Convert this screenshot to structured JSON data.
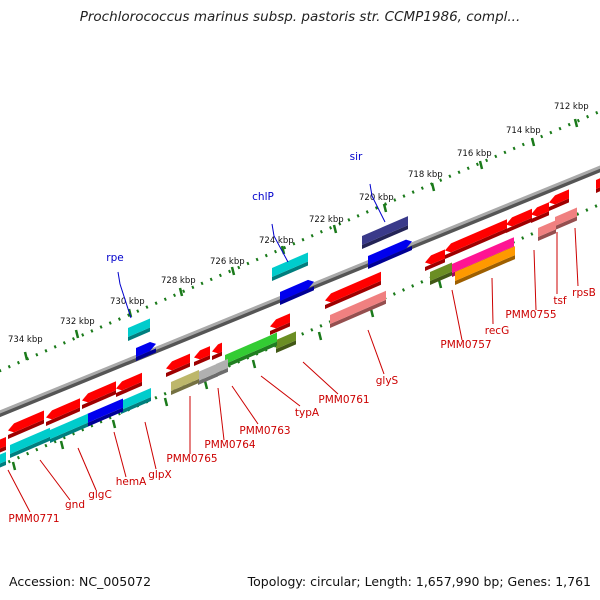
{
  "title": "Prochlorococcus marinus subsp. pastoris str. CCMP1986, compl...",
  "footer": {
    "accession": "Accession: NC_005072",
    "info": "Topology: circular; Length: 1,657,990 bp; Genes: 1,761"
  },
  "ticks": [
    {
      "label": "712 kbp"
    },
    {
      "label": "714 kbp"
    },
    {
      "label": "716 kbp"
    },
    {
      "label": "718 kbp"
    },
    {
      "label": "720 kbp"
    },
    {
      "label": "722 kbp"
    },
    {
      "label": "724 kbp"
    },
    {
      "label": "726 kbp"
    },
    {
      "label": "728 kbp"
    },
    {
      "label": "730 kbp"
    },
    {
      "label": "732 kbp"
    },
    {
      "label": "734 kbp"
    }
  ],
  "upper_labels": [
    {
      "label": "sir",
      "color": "#0000cc"
    },
    {
      "label": "chlP",
      "color": "#0000cc"
    },
    {
      "label": "rpe",
      "color": "#0000cc"
    }
  ],
  "lower_labels": [
    {
      "label": "rpsB",
      "color": "#cc0000"
    },
    {
      "label": "tsf",
      "color": "#cc0000"
    },
    {
      "label": "PMM0755",
      "color": "#cc0000"
    },
    {
      "label": "recG",
      "color": "#cc0000"
    },
    {
      "label": "PMM0757",
      "color": "#cc0000"
    },
    {
      "label": "glyS",
      "color": "#cc0000"
    },
    {
      "label": "PMM0761",
      "color": "#cc0000"
    },
    {
      "label": "typA",
      "color": "#cc0000"
    },
    {
      "label": "PMM0763",
      "color": "#cc0000"
    },
    {
      "label": "PMM0764",
      "color": "#cc0000"
    },
    {
      "label": "PMM0765",
      "color": "#cc0000"
    },
    {
      "label": "glpX",
      "color": "#cc0000"
    },
    {
      "label": "hemA",
      "color": "#cc0000"
    },
    {
      "label": "glgC",
      "color": "#cc0000"
    },
    {
      "label": "gnd",
      "color": "#cc0000"
    },
    {
      "label": "PMM0771",
      "color": "#cc0000"
    }
  ],
  "colors": {
    "backbone": "#808080",
    "tick_dots": "#1a7a1a",
    "red": "#ff0000",
    "pink": "#f08080",
    "cyan": "#00cccc",
    "blue": "#0000ee",
    "navy": "#3a3a8a",
    "olive": "#6b8e23",
    "khaki": "#bdb76b",
    "green": "#33cc33",
    "gray": "#b0b0b0",
    "magenta": "#ff1493",
    "orange": "#ff9900"
  }
}
